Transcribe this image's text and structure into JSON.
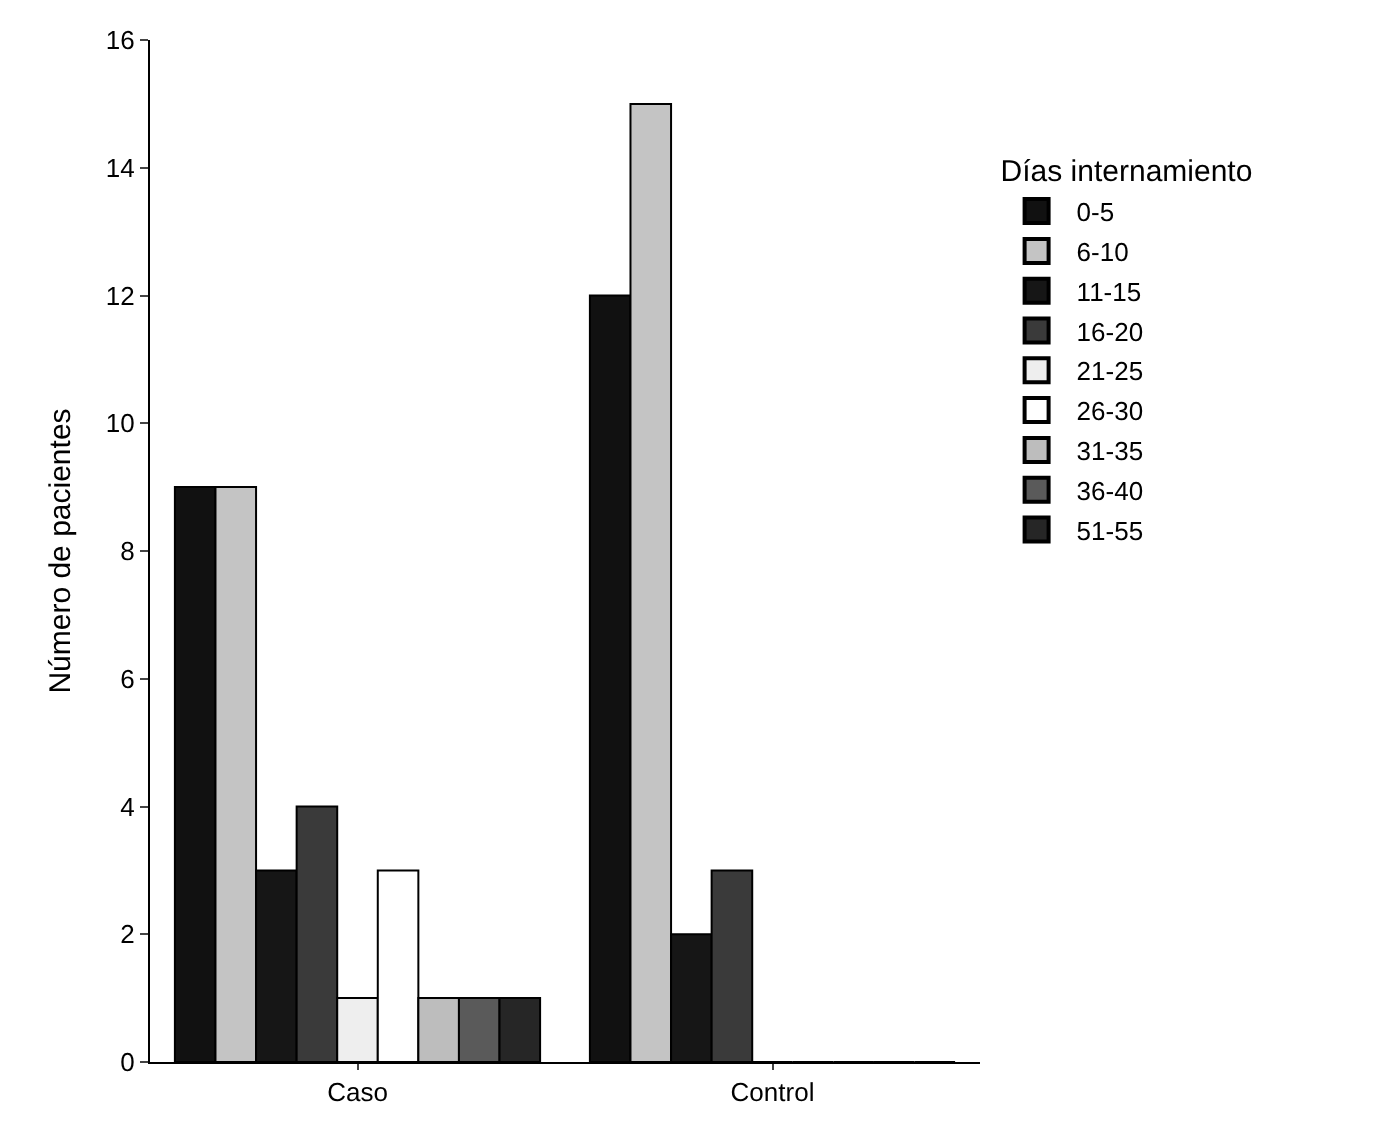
{
  "chart_data": {
    "type": "bar",
    "ylabel": "Número de pacientes",
    "legend_title": "Días internamiento",
    "categories": [
      "Caso",
      "Control"
    ],
    "series": [
      {
        "name": "0-5",
        "color": "#111111",
        "values": [
          9,
          12
        ]
      },
      {
        "name": "6-10",
        "color": "#c4c4c4",
        "values": [
          9,
          15
        ]
      },
      {
        "name": "11-15",
        "color": "#161616",
        "values": [
          3,
          2
        ]
      },
      {
        "name": "16-20",
        "color": "#3a3a3a",
        "values": [
          4,
          3
        ]
      },
      {
        "name": "21-25",
        "color": "#eeeeee",
        "values": [
          1,
          0
        ]
      },
      {
        "name": "26-30",
        "color": "#ffffff",
        "values": [
          3,
          0
        ]
      },
      {
        "name": "31-35",
        "color": "#bdbdbd",
        "values": [
          1,
          0
        ]
      },
      {
        "name": "36-40",
        "color": "#5a5a5a",
        "values": [
          1,
          0
        ]
      },
      {
        "name": "51-55",
        "color": "#262626",
        "values": [
          1,
          0
        ]
      }
    ],
    "ylim": [
      0,
      16
    ],
    "yticks": [
      0,
      2,
      4,
      6,
      8,
      10,
      12,
      14,
      16
    ],
    "grid": false,
    "legend": "right"
  }
}
